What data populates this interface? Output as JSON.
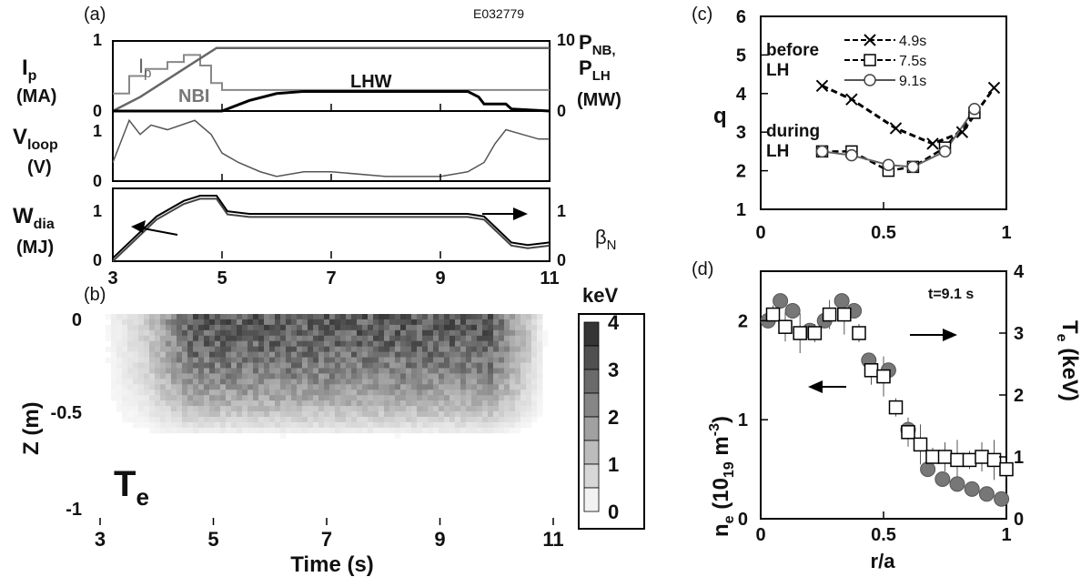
{
  "panel_a": {
    "label": "(a)",
    "shot": "E032779",
    "ip_top": {
      "x": [
        3.0,
        3.5,
        4.0,
        4.5,
        4.9,
        5.2,
        7.0,
        9.0,
        10.0,
        11.0
      ],
      "ip": [
        0.0,
        0.2,
        0.45,
        0.7,
        0.9,
        0.9,
        0.9,
        0.9,
        0.9,
        0.9
      ]
    },
    "nbi": {
      "x": [
        3.0,
        3.3,
        3.3,
        3.6,
        3.6,
        4.0,
        4.0,
        4.3,
        4.3,
        4.6,
        4.6,
        4.8,
        4.8,
        5.0,
        5.0,
        11.0
      ],
      "y": [
        2.5,
        2.5,
        5.0,
        5.0,
        6.0,
        6.0,
        7.0,
        7.0,
        8.0,
        8.0,
        6.5,
        6.5,
        4.0,
        4.0,
        3.0,
        3.0
      ]
    },
    "lhw": {
      "x": [
        3.0,
        5.0,
        5.5,
        6.0,
        6.5,
        7.0,
        8.0,
        9.0,
        9.5,
        9.7,
        9.8,
        10.2,
        10.3,
        11.0
      ],
      "y": [
        0.0,
        0.0,
        1.5,
        2.5,
        2.8,
        2.8,
        2.8,
        2.8,
        2.8,
        2.0,
        1.0,
        1.0,
        0.3,
        0.0
      ]
    },
    "ticks_left": [
      "1",
      "0"
    ],
    "ticks_right": [
      "10",
      "0"
    ],
    "text_ip": "I",
    "text_ip_sub": "p",
    "text_ma": "(MA)",
    "text_pnb": "P",
    "text_pnb_sub": "NB,",
    "text_plh": "P",
    "text_plh_sub": "LH",
    "text_mw": "(MW)",
    "tag_ip": "I",
    "tag_ip_sub": "p",
    "tag_nbi": "NBI",
    "tag_lhw": "LHW"
  },
  "vloop": {
    "x": [
      3.0,
      3.3,
      3.5,
      3.7,
      4.0,
      4.5,
      4.8,
      5.0,
      5.3,
      5.7,
      6.0,
      6.5,
      7.0,
      8.0,
      8.5,
      9.0,
      9.5,
      9.8,
      10.0,
      10.2,
      10.5,
      10.8,
      11.0
    ],
    "y": [
      0.4,
      1.3,
      1.0,
      1.2,
      1.1,
      1.3,
      1.0,
      0.6,
      0.4,
      0.2,
      0.1,
      0.2,
      0.2,
      0.1,
      0.1,
      0.1,
      0.2,
      0.4,
      0.8,
      1.1,
      1.0,
      0.9,
      0.9
    ],
    "ticks": [
      "1",
      "0"
    ],
    "text_v": "V",
    "text_v_sub": "loop",
    "text_unit": "(V)"
  },
  "wdia": {
    "x": [
      3.0,
      3.3,
      3.8,
      4.3,
      4.6,
      4.9,
      5.1,
      5.5,
      6.0,
      7.0,
      8.0,
      9.0,
      9.5,
      9.8,
      10.0,
      10.3,
      10.6,
      11.0
    ],
    "y": [
      0.0,
      0.3,
      0.8,
      1.1,
      1.2,
      1.2,
      0.9,
      0.85,
      0.85,
      0.85,
      0.85,
      0.85,
      0.85,
      0.8,
      0.6,
      0.3,
      0.25,
      0.3
    ],
    "ticks_left": [
      "1",
      "0"
    ],
    "ticks_right": [
      "1",
      "0"
    ],
    "text_w": "W",
    "text_w_sub": "dia",
    "text_unit": "(MJ)",
    "text_beta": "β",
    "text_beta_sub": "N"
  },
  "panel_a_xticks": [
    "3",
    "5",
    "7",
    "9",
    "11"
  ],
  "panel_b": {
    "label": "(b)",
    "yticks": [
      "0",
      "-0.5",
      "-1"
    ],
    "xticks": [
      "3",
      "5",
      "7",
      "9",
      "11"
    ],
    "ylabel": "Z (m)",
    "xlabel": "Time (s)",
    "text_te": "T",
    "text_te_sub": "e",
    "colorbar_title": "keV",
    "colorbar_ticks": [
      "4",
      "3",
      "2",
      "1",
      "0"
    ]
  },
  "panel_c": {
    "label": "(c)",
    "ylabel": "q",
    "yticks": [
      "6",
      "5",
      "4",
      "3",
      "2",
      "1"
    ],
    "xticks": [
      "0",
      "0.5",
      "1"
    ],
    "legend": [
      "4.9s",
      "7.5s",
      "9.1s"
    ],
    "text_before": "before",
    "text_before2": "LH",
    "text_during": "during",
    "text_during2": "LH"
  },
  "panel_d": {
    "label": "(d)",
    "time_label": "t=9.1 s",
    "yticks_left": [
      "2",
      "1",
      "0"
    ],
    "yticks_right": [
      "4",
      "3",
      "2",
      "1",
      "0"
    ],
    "xticks": [
      "0",
      "0.5",
      "1"
    ],
    "xlabel": "r/a",
    "ylabel_left": "n",
    "ylabel_left_rest": "(10",
    "ylabel_left_19": "19",
    "ylabel_left_unit": "m",
    "ylabel_left_exp": "-3",
    "ylabel_left_end": ")",
    "ylabel_right": "T",
    "ylabel_right_sub": "e",
    "ylabel_right_unit": "(keV)"
  },
  "chart_data": [
    {
      "type": "line",
      "panel": "(a) top",
      "shot_label": "E032779",
      "xlim": [
        3,
        11
      ],
      "ylim_left": [
        0,
        1
      ],
      "ylim_right": [
        0,
        10
      ],
      "series": [
        {
          "name": "I",
          "axis": "left",
          "x": [
            3.0,
            3.5,
            4.0,
            4.5,
            4.9,
            5.2,
            7.0,
            9.0,
            10.0,
            11.0
          ],
          "y": [
            0.0,
            0.2,
            0.45,
            0.7,
            0.9,
            0.9,
            0.9,
            0.9,
            0.9,
            0.9
          ]
        },
        {
          "name": "NBI",
          "axis": "right",
          "x": [
            3.0,
            3.3,
            3.3,
            3.6,
            3.6,
            4.0,
            4.0,
            4.3,
            4.3,
            4.6,
            4.6,
            4.8,
            4.8,
            5.0,
            5.0,
            11.0
          ],
          "y": [
            2.5,
            2.5,
            5.0,
            5.0,
            6.0,
            6.0,
            7.0,
            7.0,
            8.0,
            8.0,
            6.5,
            6.5,
            4.0,
            4.0,
            3.0,
            3.0
          ]
        },
        {
          "name": "LHW",
          "axis": "right",
          "x": [
            3.0,
            5.0,
            5.5,
            6.0,
            6.5,
            7.0,
            8.0,
            9.0,
            9.5,
            9.7,
            9.8,
            10.2,
            10.3,
            11.0
          ],
          "y": [
            0.0,
            0.0,
            1.5,
            2.5,
            2.8,
            2.8,
            2.8,
            2.8,
            2.8,
            2.0,
            1.0,
            1.0,
            0.3,
            0.0
          ]
        }
      ]
    },
    {
      "type": "line",
      "panel": "(a) middle",
      "xlim": [
        3,
        11
      ],
      "ylim": [
        0,
        1.5
      ],
      "x": [
        3.0,
        3.3,
        3.5,
        3.7,
        4.0,
        4.5,
        4.8,
        5.0,
        5.3,
        5.7,
        6.0,
        6.5,
        7.0,
        8.0,
        8.5,
        9.0,
        9.5,
        9.8,
        10.0,
        10.2,
        10.5,
        10.8,
        11.0
      ],
      "y": [
        0.4,
        1.3,
        1.0,
        1.2,
        1.1,
        1.3,
        1.0,
        0.6,
        0.4,
        0.2,
        0.1,
        0.2,
        0.2,
        0.1,
        0.1,
        0.1,
        0.2,
        0.4,
        0.8,
        1.1,
        1.0,
        0.9,
        0.9
      ]
    },
    {
      "type": "line",
      "panel": "(a) bottom",
      "xlim": [
        3,
        11
      ],
      "ylim": [
        0,
        1.4
      ],
      "x": [
        3.0,
        3.3,
        3.8,
        4.3,
        4.6,
        4.9,
        5.1,
        5.5,
        6.0,
        7.0,
        8.0,
        9.0,
        9.5,
        9.8,
        10.0,
        10.3,
        10.6,
        11.0
      ],
      "y": [
        0.0,
        0.3,
        0.8,
        1.1,
        1.2,
        1.2,
        0.9,
        0.85,
        0.85,
        0.85,
        0.85,
        0.85,
        0.85,
        0.8,
        0.6,
        0.3,
        0.25,
        0.3
      ]
    },
    {
      "type": "heatmap",
      "panel": "(b)",
      "xlim": [
        3,
        11
      ],
      "ylim": [
        -1,
        0
      ],
      "colorbar_range": [
        0,
        4
      ],
      "colormap": "grayscale",
      "peak_region": {
        "time": [
          4.5,
          10.0
        ],
        "z": [
          -0.5,
          0.0
        ],
        "value_keV": 3
      }
    },
    {
      "type": "line",
      "panel": "(c)",
      "xlim": [
        0,
        1
      ],
      "ylim": [
        1,
        6
      ],
      "series": [
        {
          "name": "4.9s",
          "marker": "x",
          "x": [
            0.25,
            0.37,
            0.55,
            0.7,
            0.82,
            0.95
          ],
          "y": [
            4.2,
            3.85,
            3.1,
            2.7,
            3.0,
            4.15
          ]
        },
        {
          "name": "7.5s",
          "marker": "square",
          "x": [
            0.25,
            0.37,
            0.52,
            0.62,
            0.75,
            0.87
          ],
          "y": [
            2.5,
            2.5,
            2.0,
            2.1,
            2.6,
            3.5
          ]
        },
        {
          "name": "9.1s",
          "marker": "circle",
          "x": [
            0.25,
            0.37,
            0.52,
            0.62,
            0.75,
            0.87
          ],
          "y": [
            2.5,
            2.4,
            2.15,
            2.1,
            2.5,
            3.6
          ]
        }
      ]
    },
    {
      "type": "scatter",
      "panel": "(d)",
      "xlim": [
        0,
        1
      ],
      "ylim_left": [
        0,
        2.5
      ],
      "ylim_right": [
        0,
        4
      ],
      "series": [
        {
          "name": "n",
          "axis": "left",
          "marker": "filled-circle",
          "x": [
            0.03,
            0.08,
            0.13,
            0.2,
            0.26,
            0.33,
            0.38,
            0.44,
            0.52,
            0.6,
            0.68,
            0.74,
            0.8,
            0.86,
            0.92,
            0.98
          ],
          "y": [
            2.0,
            2.2,
            2.1,
            1.9,
            2.0,
            2.2,
            2.1,
            1.6,
            1.5,
            0.9,
            0.5,
            0.4,
            0.35,
            0.3,
            0.25,
            0.2
          ]
        },
        {
          "name": "T",
          "axis": "right",
          "marker": "square",
          "x": [
            0.05,
            0.1,
            0.16,
            0.22,
            0.28,
            0.34,
            0.4,
            0.45,
            0.5,
            0.55,
            0.6,
            0.65,
            0.7,
            0.75,
            0.8,
            0.85,
            0.9,
            0.95,
            1.0
          ],
          "y": [
            3.3,
            3.1,
            3.0,
            3.0,
            3.3,
            3.3,
            3.0,
            2.4,
            2.3,
            1.8,
            1.4,
            1.2,
            1.0,
            1.0,
            0.95,
            0.95,
            1.0,
            0.95,
            0.8
          ]
        }
      ]
    }
  ]
}
